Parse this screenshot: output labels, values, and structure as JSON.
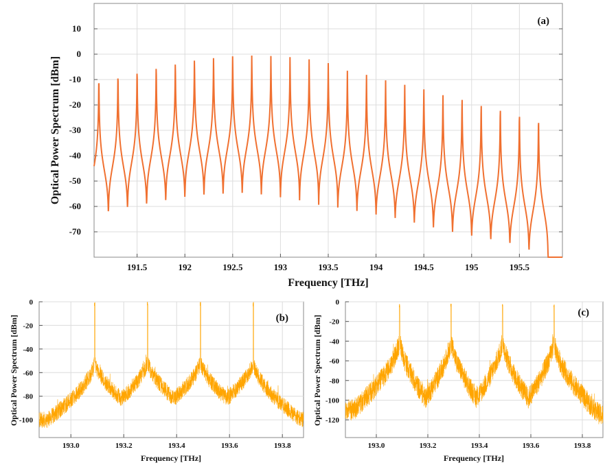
{
  "chart_data": [
    {
      "panel": "(a)",
      "type": "line",
      "xlabel": "Frequency [THz]",
      "ylabel": "Optical Power Spectrum [dBm]",
      "xlim": [
        191.05,
        195.95
      ],
      "ylim": [
        -80,
        20
      ],
      "xticks": [
        "191.5",
        "192",
        "192.5",
        "193",
        "193.5",
        "194",
        "194.5",
        "195",
        "195.5"
      ],
      "xtick_values": [
        191.5,
        192,
        192.5,
        193,
        193.5,
        194,
        194.5,
        195,
        195.5
      ],
      "yticks": [
        "10",
        "0",
        "-10",
        "-20",
        "-30",
        "-40",
        "-50",
        "-60",
        "-70"
      ],
      "ytick_values": [
        10,
        0,
        -10,
        -20,
        -30,
        -40,
        -50,
        -60,
        -70
      ],
      "grid": true,
      "color": "#f07030",
      "peak_start": 191.1,
      "peak_spacing": 0.2,
      "peaks": [
        -8,
        -6.5,
        -5,
        -3.5,
        -2.2,
        -1,
        -0.4,
        0,
        0,
        -0.4,
        -1,
        -2,
        -3.5,
        -6.5,
        -8,
        -10,
        -11.5,
        -13,
        -15,
        -16.5,
        -18.5,
        -20,
        -22,
        -24
      ],
      "troughs": [
        -68,
        -64,
        -62,
        -60.5,
        -59,
        -57.5,
        -56.5,
        -56,
        -55.5,
        -56,
        -57,
        -58,
        -59.5,
        -60.5,
        -62,
        -63.5,
        -65,
        -67,
        -69,
        -71,
        -72.5,
        -74,
        -75.5,
        -78.5,
        -81
      ]
    },
    {
      "panel": "(b)",
      "type": "line",
      "xlabel": "Frequency [THz]",
      "ylabel": "Optical Power Spectrum [dBm]",
      "xlim": [
        192.88,
        193.88
      ],
      "ylim": [
        -115,
        0
      ],
      "xticks": [
        "193.0",
        "193.2",
        "193.4",
        "193.6",
        "193.8"
      ],
      "xtick_values": [
        193.0,
        193.2,
        193.4,
        193.6,
        193.8
      ],
      "yticks": [
        "0",
        "-20",
        "-40",
        "-60",
        "-80",
        "-100"
      ],
      "ytick_values": [
        0,
        -20,
        -40,
        -60,
        -80,
        -100
      ],
      "grid": true,
      "color": "#ffa500",
      "peak_freqs": [
        193.09,
        193.29,
        193.49,
        193.69
      ],
      "spike_level": 0,
      "hump_level": -50,
      "edge_levels": [
        -100,
        -82,
        -82,
        -82,
        -100
      ]
    },
    {
      "panel": "(c)",
      "type": "line",
      "xlabel": "Frequency [THz]",
      "ylabel": "Optical Power Spectrum [dBm]",
      "xlim": [
        192.88,
        193.88
      ],
      "ylim": [
        -138,
        0
      ],
      "xticks": [
        "193.0",
        "193.2",
        "193.4",
        "193.6",
        "193.8"
      ],
      "xtick_values": [
        193.0,
        193.2,
        193.4,
        193.6,
        193.8
      ],
      "yticks": [
        "0",
        "-20",
        "-40",
        "-60",
        "-80",
        "-100",
        "-120"
      ],
      "ytick_values": [
        0,
        -20,
        -40,
        -60,
        -80,
        -100,
        -120
      ],
      "grid": true,
      "color": "#ffa500",
      "peak_freqs": [
        193.09,
        193.29,
        193.49,
        193.69
      ],
      "spike_level": -2,
      "hump_level": -38,
      "edge_levels": [
        -110,
        -98,
        -98,
        -98,
        -115
      ]
    }
  ]
}
